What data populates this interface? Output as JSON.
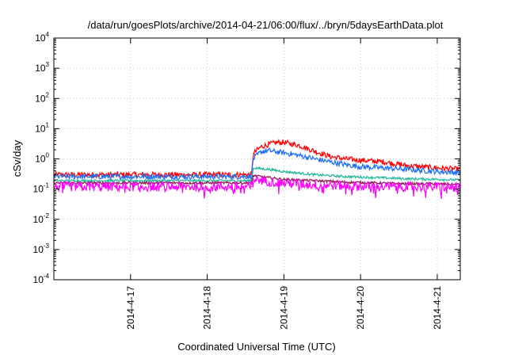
{
  "chart_data": {
    "type": "line",
    "title": "/data/run/goesPlots/archive/2014-04-21/06:00/flux/../bryn/5daysEarthData.plot",
    "xlabel": "Coordinated Universal Time (UTC)",
    "ylabel": "cSv/day",
    "yscale": "log",
    "ylim": [
      0.0001,
      10000
    ],
    "xlim": [
      0,
      5.3
    ],
    "grid": true,
    "x_ticks": [
      {
        "label": "2014-4-17",
        "value": 1.0
      },
      {
        "label": "2014-4-18",
        "value": 2.0
      },
      {
        "label": "2014-4-19",
        "value": 3.0
      },
      {
        "label": "2014-4-20",
        "value": 4.0
      },
      {
        "label": "2014-4-21",
        "value": 5.0
      }
    ],
    "y_ticks": [
      {
        "base": "10",
        "exp": "-4",
        "value": 0.0001
      },
      {
        "base": "10",
        "exp": "-3",
        "value": 0.001
      },
      {
        "base": "10",
        "exp": "-2",
        "value": 0.01
      },
      {
        "base": "10",
        "exp": "-1",
        "value": 0.1
      },
      {
        "base": "10",
        "exp": "0",
        "value": 1
      },
      {
        "base": "10",
        "exp": "1",
        "value": 10
      },
      {
        "base": "10",
        "exp": "2",
        "value": 100
      },
      {
        "base": "10",
        "exp": "3",
        "value": 1000
      },
      {
        "base": "10",
        "exp": "4",
        "value": 10000
      }
    ],
    "series": [
      {
        "color": "#ff0000",
        "x": [
          0,
          0.5,
          1.0,
          1.5,
          2.0,
          2.5,
          2.58,
          2.6,
          2.7,
          2.8,
          2.9,
          3.0,
          3.2,
          3.4,
          3.6,
          3.8,
          4.0,
          4.3,
          4.6,
          5.0,
          5.3
        ],
        "values": [
          0.3,
          0.3,
          0.3,
          0.3,
          0.3,
          0.3,
          0.3,
          1.5,
          2.5,
          3.0,
          3.5,
          3.5,
          2.8,
          1.8,
          1.2,
          1.0,
          0.9,
          0.8,
          0.6,
          0.5,
          0.45
        ]
      },
      {
        "color": "#1e6ff5",
        "x": [
          0,
          0.5,
          1.0,
          1.5,
          2.0,
          2.5,
          2.58,
          2.6,
          2.7,
          2.8,
          2.9,
          3.0,
          3.2,
          3.4,
          3.6,
          3.8,
          4.0,
          4.3,
          4.6,
          5.0,
          5.3
        ],
        "values": [
          0.26,
          0.26,
          0.26,
          0.26,
          0.26,
          0.26,
          0.26,
          1.0,
          1.7,
          1.9,
          1.7,
          1.6,
          1.3,
          1.0,
          0.8,
          0.65,
          0.55,
          0.5,
          0.45,
          0.38,
          0.35
        ]
      },
      {
        "color": "#1fb89a",
        "x": [
          0,
          0.5,
          1.0,
          1.5,
          2.0,
          2.5,
          2.58,
          2.6,
          2.8,
          3.0,
          3.4,
          3.8,
          4.2,
          4.6,
          5.0,
          5.3
        ],
        "values": [
          0.19,
          0.19,
          0.19,
          0.19,
          0.19,
          0.19,
          0.19,
          0.5,
          0.45,
          0.38,
          0.3,
          0.26,
          0.24,
          0.22,
          0.21,
          0.2
        ]
      },
      {
        "color": "#8b1a4a",
        "x": [
          0,
          0.5,
          1.0,
          1.5,
          2.0,
          2.5,
          2.58,
          2.6,
          2.8,
          3.0,
          3.4,
          3.8,
          4.2,
          4.6,
          5.0,
          5.3
        ],
        "values": [
          0.16,
          0.16,
          0.16,
          0.16,
          0.16,
          0.16,
          0.16,
          0.28,
          0.24,
          0.21,
          0.19,
          0.17,
          0.16,
          0.15,
          0.15,
          0.14
        ]
      },
      {
        "color": "#ff00ff",
        "x": [
          0,
          0.5,
          1.0,
          1.5,
          2.0,
          2.5,
          2.58,
          2.6,
          2.8,
          3.0,
          3.4,
          3.8,
          4.2,
          4.6,
          5.0,
          5.3
        ],
        "values": [
          0.12,
          0.12,
          0.12,
          0.12,
          0.12,
          0.12,
          0.12,
          0.22,
          0.18,
          0.16,
          0.14,
          0.13,
          0.12,
          0.12,
          0.12,
          0.11
        ]
      }
    ]
  }
}
